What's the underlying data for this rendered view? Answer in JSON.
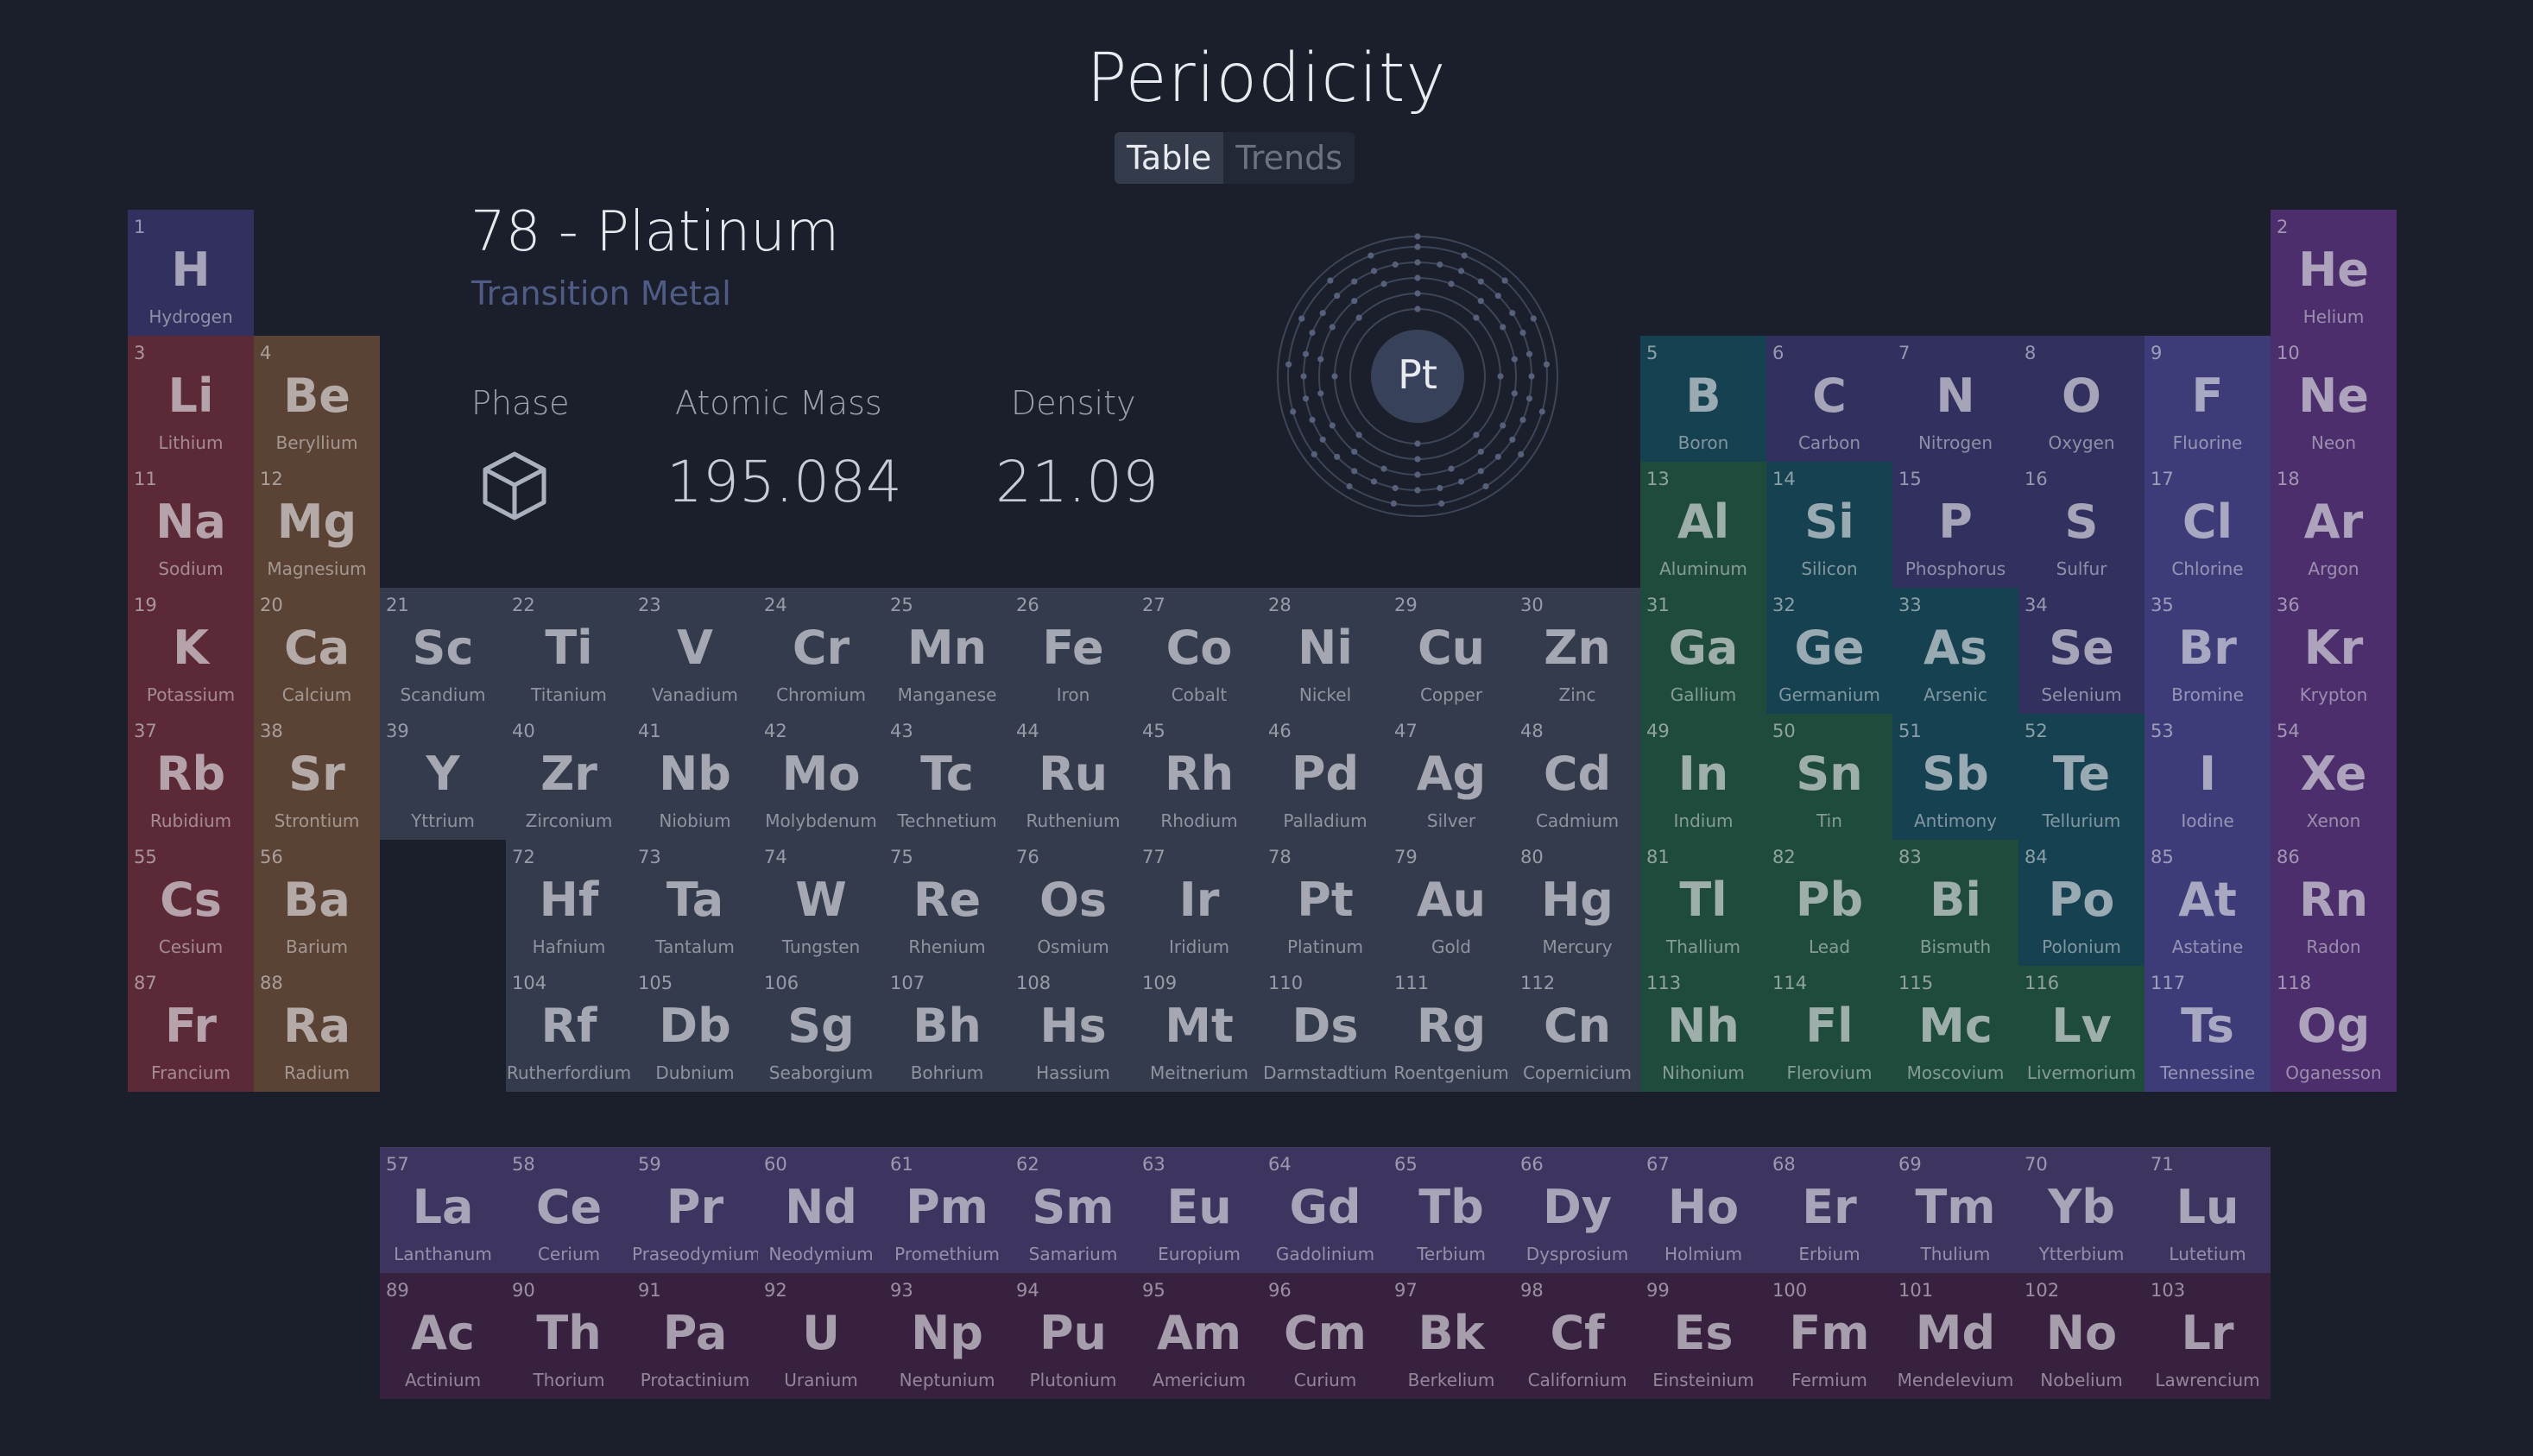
{
  "app": {
    "title": "Periodicity"
  },
  "view_tabs": [
    {
      "label": "Table",
      "active": true
    },
    {
      "label": "Trends",
      "active": false
    }
  ],
  "selected": {
    "title": "78 - Platinum",
    "category": "Transition Metal",
    "symbol": "Pt",
    "phase_label": "Phase",
    "phase_icon": "cube-icon",
    "mass_label": "Atomic Mass",
    "mass_value": "195.084",
    "density_label": "Density",
    "density_value": "21.09",
    "shells": [
      2,
      8,
      18,
      32,
      17,
      1
    ]
  },
  "category_colors": {
    "alkali": "#5c2a37",
    "alkaline": "#5a4234",
    "transition": "#333b4c",
    "post": "#1f4b3c",
    "metalloid": "#164150",
    "nonmetal": "#32305f",
    "halogen": "#3e3c78",
    "noble": "#4b2e6b",
    "lanthanide": "#3e3460",
    "actinide": "#38213f"
  },
  "elements": [
    {
      "n": "1",
      "s": "H",
      "name": "Hydrogen",
      "r": 1,
      "c": 1,
      "cat": "nonmetal"
    },
    {
      "n": "2",
      "s": "He",
      "name": "Helium",
      "r": 1,
      "c": 18,
      "cat": "noble"
    },
    {
      "n": "3",
      "s": "Li",
      "name": "Lithium",
      "r": 2,
      "c": 1,
      "cat": "alkali"
    },
    {
      "n": "4",
      "s": "Be",
      "name": "Beryllium",
      "r": 2,
      "c": 2,
      "cat": "alkaline"
    },
    {
      "n": "5",
      "s": "B",
      "name": "Boron",
      "r": 2,
      "c": 13,
      "cat": "metalloid"
    },
    {
      "n": "6",
      "s": "C",
      "name": "Carbon",
      "r": 2,
      "c": 14,
      "cat": "nonmetal"
    },
    {
      "n": "7",
      "s": "N",
      "name": "Nitrogen",
      "r": 2,
      "c": 15,
      "cat": "nonmetal"
    },
    {
      "n": "8",
      "s": "O",
      "name": "Oxygen",
      "r": 2,
      "c": 16,
      "cat": "nonmetal"
    },
    {
      "n": "9",
      "s": "F",
      "name": "Fluorine",
      "r": 2,
      "c": 17,
      "cat": "halogen"
    },
    {
      "n": "10",
      "s": "Ne",
      "name": "Neon",
      "r": 2,
      "c": 18,
      "cat": "noble"
    },
    {
      "n": "11",
      "s": "Na",
      "name": "Sodium",
      "r": 3,
      "c": 1,
      "cat": "alkali"
    },
    {
      "n": "12",
      "s": "Mg",
      "name": "Magnesium",
      "r": 3,
      "c": 2,
      "cat": "alkaline"
    },
    {
      "n": "13",
      "s": "Al",
      "name": "Aluminum",
      "r": 3,
      "c": 13,
      "cat": "post"
    },
    {
      "n": "14",
      "s": "Si",
      "name": "Silicon",
      "r": 3,
      "c": 14,
      "cat": "metalloid"
    },
    {
      "n": "15",
      "s": "P",
      "name": "Phosphorus",
      "r": 3,
      "c": 15,
      "cat": "nonmetal"
    },
    {
      "n": "16",
      "s": "S",
      "name": "Sulfur",
      "r": 3,
      "c": 16,
      "cat": "nonmetal"
    },
    {
      "n": "17",
      "s": "Cl",
      "name": "Chlorine",
      "r": 3,
      "c": 17,
      "cat": "halogen"
    },
    {
      "n": "18",
      "s": "Ar",
      "name": "Argon",
      "r": 3,
      "c": 18,
      "cat": "noble"
    },
    {
      "n": "19",
      "s": "K",
      "name": "Potassium",
      "r": 4,
      "c": 1,
      "cat": "alkali"
    },
    {
      "n": "20",
      "s": "Ca",
      "name": "Calcium",
      "r": 4,
      "c": 2,
      "cat": "alkaline"
    },
    {
      "n": "21",
      "s": "Sc",
      "name": "Scandium",
      "r": 4,
      "c": 3,
      "cat": "transition"
    },
    {
      "n": "22",
      "s": "Ti",
      "name": "Titanium",
      "r": 4,
      "c": 4,
      "cat": "transition"
    },
    {
      "n": "23",
      "s": "V",
      "name": "Vanadium",
      "r": 4,
      "c": 5,
      "cat": "transition"
    },
    {
      "n": "24",
      "s": "Cr",
      "name": "Chromium",
      "r": 4,
      "c": 6,
      "cat": "transition"
    },
    {
      "n": "25",
      "s": "Mn",
      "name": "Manganese",
      "r": 4,
      "c": 7,
      "cat": "transition"
    },
    {
      "n": "26",
      "s": "Fe",
      "name": "Iron",
      "r": 4,
      "c": 8,
      "cat": "transition"
    },
    {
      "n": "27",
      "s": "Co",
      "name": "Cobalt",
      "r": 4,
      "c": 9,
      "cat": "transition"
    },
    {
      "n": "28",
      "s": "Ni",
      "name": "Nickel",
      "r": 4,
      "c": 10,
      "cat": "transition"
    },
    {
      "n": "29",
      "s": "Cu",
      "name": "Copper",
      "r": 4,
      "c": 11,
      "cat": "transition"
    },
    {
      "n": "30",
      "s": "Zn",
      "name": "Zinc",
      "r": 4,
      "c": 12,
      "cat": "transition"
    },
    {
      "n": "31",
      "s": "Ga",
      "name": "Gallium",
      "r": 4,
      "c": 13,
      "cat": "post"
    },
    {
      "n": "32",
      "s": "Ge",
      "name": "Germanium",
      "r": 4,
      "c": 14,
      "cat": "metalloid"
    },
    {
      "n": "33",
      "s": "As",
      "name": "Arsenic",
      "r": 4,
      "c": 15,
      "cat": "metalloid"
    },
    {
      "n": "34",
      "s": "Se",
      "name": "Selenium",
      "r": 4,
      "c": 16,
      "cat": "nonmetal"
    },
    {
      "n": "35",
      "s": "Br",
      "name": "Bromine",
      "r": 4,
      "c": 17,
      "cat": "halogen"
    },
    {
      "n": "36",
      "s": "Kr",
      "name": "Krypton",
      "r": 4,
      "c": 18,
      "cat": "noble"
    },
    {
      "n": "37",
      "s": "Rb",
      "name": "Rubidium",
      "r": 5,
      "c": 1,
      "cat": "alkali"
    },
    {
      "n": "38",
      "s": "Sr",
      "name": "Strontium",
      "r": 5,
      "c": 2,
      "cat": "alkaline"
    },
    {
      "n": "39",
      "s": "Y",
      "name": "Yttrium",
      "r": 5,
      "c": 3,
      "cat": "transition"
    },
    {
      "n": "40",
      "s": "Zr",
      "name": "Zirconium",
      "r": 5,
      "c": 4,
      "cat": "transition"
    },
    {
      "n": "41",
      "s": "Nb",
      "name": "Niobium",
      "r": 5,
      "c": 5,
      "cat": "transition"
    },
    {
      "n": "42",
      "s": "Mo",
      "name": "Molybdenum",
      "r": 5,
      "c": 6,
      "cat": "transition"
    },
    {
      "n": "43",
      "s": "Tc",
      "name": "Technetium",
      "r": 5,
      "c": 7,
      "cat": "transition"
    },
    {
      "n": "44",
      "s": "Ru",
      "name": "Ruthenium",
      "r": 5,
      "c": 8,
      "cat": "transition"
    },
    {
      "n": "45",
      "s": "Rh",
      "name": "Rhodium",
      "r": 5,
      "c": 9,
      "cat": "transition"
    },
    {
      "n": "46",
      "s": "Pd",
      "name": "Palladium",
      "r": 5,
      "c": 10,
      "cat": "transition"
    },
    {
      "n": "47",
      "s": "Ag",
      "name": "Silver",
      "r": 5,
      "c": 11,
      "cat": "transition"
    },
    {
      "n": "48",
      "s": "Cd",
      "name": "Cadmium",
      "r": 5,
      "c": 12,
      "cat": "transition"
    },
    {
      "n": "49",
      "s": "In",
      "name": "Indium",
      "r": 5,
      "c": 13,
      "cat": "post"
    },
    {
      "n": "50",
      "s": "Sn",
      "name": "Tin",
      "r": 5,
      "c": 14,
      "cat": "post"
    },
    {
      "n": "51",
      "s": "Sb",
      "name": "Antimony",
      "r": 5,
      "c": 15,
      "cat": "metalloid"
    },
    {
      "n": "52",
      "s": "Te",
      "name": "Tellurium",
      "r": 5,
      "c": 16,
      "cat": "metalloid"
    },
    {
      "n": "53",
      "s": "I",
      "name": "Iodine",
      "r": 5,
      "c": 17,
      "cat": "halogen"
    },
    {
      "n": "54",
      "s": "Xe",
      "name": "Xenon",
      "r": 5,
      "c": 18,
      "cat": "noble"
    },
    {
      "n": "55",
      "s": "Cs",
      "name": "Cesium",
      "r": 6,
      "c": 1,
      "cat": "alkali"
    },
    {
      "n": "56",
      "s": "Ba",
      "name": "Barium",
      "r": 6,
      "c": 2,
      "cat": "alkaline"
    },
    {
      "n": "72",
      "s": "Hf",
      "name": "Hafnium",
      "r": 6,
      "c": 4,
      "cat": "transition"
    },
    {
      "n": "73",
      "s": "Ta",
      "name": "Tantalum",
      "r": 6,
      "c": 5,
      "cat": "transition"
    },
    {
      "n": "74",
      "s": "W",
      "name": "Tungsten",
      "r": 6,
      "c": 6,
      "cat": "transition"
    },
    {
      "n": "75",
      "s": "Re",
      "name": "Rhenium",
      "r": 6,
      "c": 7,
      "cat": "transition"
    },
    {
      "n": "76",
      "s": "Os",
      "name": "Osmium",
      "r": 6,
      "c": 8,
      "cat": "transition"
    },
    {
      "n": "77",
      "s": "Ir",
      "name": "Iridium",
      "r": 6,
      "c": 9,
      "cat": "transition"
    },
    {
      "n": "78",
      "s": "Pt",
      "name": "Platinum",
      "r": 6,
      "c": 10,
      "cat": "transition"
    },
    {
      "n": "79",
      "s": "Au",
      "name": "Gold",
      "r": 6,
      "c": 11,
      "cat": "transition"
    },
    {
      "n": "80",
      "s": "Hg",
      "name": "Mercury",
      "r": 6,
      "c": 12,
      "cat": "transition"
    },
    {
      "n": "81",
      "s": "Tl",
      "name": "Thallium",
      "r": 6,
      "c": 13,
      "cat": "post"
    },
    {
      "n": "82",
      "s": "Pb",
      "name": "Lead",
      "r": 6,
      "c": 14,
      "cat": "post"
    },
    {
      "n": "83",
      "s": "Bi",
      "name": "Bismuth",
      "r": 6,
      "c": 15,
      "cat": "post"
    },
    {
      "n": "84",
      "s": "Po",
      "name": "Polonium",
      "r": 6,
      "c": 16,
      "cat": "metalloid"
    },
    {
      "n": "85",
      "s": "At",
      "name": "Astatine",
      "r": 6,
      "c": 17,
      "cat": "halogen"
    },
    {
      "n": "86",
      "s": "Rn",
      "name": "Radon",
      "r": 6,
      "c": 18,
      "cat": "noble"
    },
    {
      "n": "87",
      "s": "Fr",
      "name": "Francium",
      "r": 7,
      "c": 1,
      "cat": "alkali"
    },
    {
      "n": "88",
      "s": "Ra",
      "name": "Radium",
      "r": 7,
      "c": 2,
      "cat": "alkaline"
    },
    {
      "n": "104",
      "s": "Rf",
      "name": "Rutherfordium",
      "r": 7,
      "c": 4,
      "cat": "transition"
    },
    {
      "n": "105",
      "s": "Db",
      "name": "Dubnium",
      "r": 7,
      "c": 5,
      "cat": "transition"
    },
    {
      "n": "106",
      "s": "Sg",
      "name": "Seaborgium",
      "r": 7,
      "c": 6,
      "cat": "transition"
    },
    {
      "n": "107",
      "s": "Bh",
      "name": "Bohrium",
      "r": 7,
      "c": 7,
      "cat": "transition"
    },
    {
      "n": "108",
      "s": "Hs",
      "name": "Hassium",
      "r": 7,
      "c": 8,
      "cat": "transition"
    },
    {
      "n": "109",
      "s": "Mt",
      "name": "Meitnerium",
      "r": 7,
      "c": 9,
      "cat": "transition"
    },
    {
      "n": "110",
      "s": "Ds",
      "name": "Darmstadtium",
      "r": 7,
      "c": 10,
      "cat": "transition"
    },
    {
      "n": "111",
      "s": "Rg",
      "name": "Roentgenium",
      "r": 7,
      "c": 11,
      "cat": "transition"
    },
    {
      "n": "112",
      "s": "Cn",
      "name": "Copernicium",
      "r": 7,
      "c": 12,
      "cat": "transition"
    },
    {
      "n": "113",
      "s": "Nh",
      "name": "Nihonium",
      "r": 7,
      "c": 13,
      "cat": "post"
    },
    {
      "n": "114",
      "s": "Fl",
      "name": "Flerovium",
      "r": 7,
      "c": 14,
      "cat": "post"
    },
    {
      "n": "115",
      "s": "Mc",
      "name": "Moscovium",
      "r": 7,
      "c": 15,
      "cat": "post"
    },
    {
      "n": "116",
      "s": "Lv",
      "name": "Livermorium",
      "r": 7,
      "c": 16,
      "cat": "post"
    },
    {
      "n": "117",
      "s": "Ts",
      "name": "Tennessine",
      "r": 7,
      "c": 17,
      "cat": "halogen"
    },
    {
      "n": "118",
      "s": "Og",
      "name": "Oganesson",
      "r": 7,
      "c": 18,
      "cat": "noble"
    },
    {
      "n": "57",
      "s": "La",
      "name": "Lanthanum",
      "r": 9,
      "c": 3,
      "cat": "lanthanide"
    },
    {
      "n": "58",
      "s": "Ce",
      "name": "Cerium",
      "r": 9,
      "c": 4,
      "cat": "lanthanide"
    },
    {
      "n": "59",
      "s": "Pr",
      "name": "Praseodymium",
      "r": 9,
      "c": 5,
      "cat": "lanthanide"
    },
    {
      "n": "60",
      "s": "Nd",
      "name": "Neodymium",
      "r": 9,
      "c": 6,
      "cat": "lanthanide"
    },
    {
      "n": "61",
      "s": "Pm",
      "name": "Promethium",
      "r": 9,
      "c": 7,
      "cat": "lanthanide"
    },
    {
      "n": "62",
      "s": "Sm",
      "name": "Samarium",
      "r": 9,
      "c": 8,
      "cat": "lanthanide"
    },
    {
      "n": "63",
      "s": "Eu",
      "name": "Europium",
      "r": 9,
      "c": 9,
      "cat": "lanthanide"
    },
    {
      "n": "64",
      "s": "Gd",
      "name": "Gadolinium",
      "r": 9,
      "c": 10,
      "cat": "lanthanide"
    },
    {
      "n": "65",
      "s": "Tb",
      "name": "Terbium",
      "r": 9,
      "c": 11,
      "cat": "lanthanide"
    },
    {
      "n": "66",
      "s": "Dy",
      "name": "Dysprosium",
      "r": 9,
      "c": 12,
      "cat": "lanthanide"
    },
    {
      "n": "67",
      "s": "Ho",
      "name": "Holmium",
      "r": 9,
      "c": 13,
      "cat": "lanthanide"
    },
    {
      "n": "68",
      "s": "Er",
      "name": "Erbium",
      "r": 9,
      "c": 14,
      "cat": "lanthanide"
    },
    {
      "n": "69",
      "s": "Tm",
      "name": "Thulium",
      "r": 9,
      "c": 15,
      "cat": "lanthanide"
    },
    {
      "n": "70",
      "s": "Yb",
      "name": "Ytterbium",
      "r": 9,
      "c": 16,
      "cat": "lanthanide"
    },
    {
      "n": "71",
      "s": "Lu",
      "name": "Lutetium",
      "r": 9,
      "c": 17,
      "cat": "lanthanide"
    },
    {
      "n": "89",
      "s": "Ac",
      "name": "Actinium",
      "r": 10,
      "c": 3,
      "cat": "actinide"
    },
    {
      "n": "90",
      "s": "Th",
      "name": "Thorium",
      "r": 10,
      "c": 4,
      "cat": "actinide"
    },
    {
      "n": "91",
      "s": "Pa",
      "name": "Protactinium",
      "r": 10,
      "c": 5,
      "cat": "actinide"
    },
    {
      "n": "92",
      "s": "U",
      "name": "Uranium",
      "r": 10,
      "c": 6,
      "cat": "actinide"
    },
    {
      "n": "93",
      "s": "Np",
      "name": "Neptunium",
      "r": 10,
      "c": 7,
      "cat": "actinide"
    },
    {
      "n": "94",
      "s": "Pu",
      "name": "Plutonium",
      "r": 10,
      "c": 8,
      "cat": "actinide"
    },
    {
      "n": "95",
      "s": "Am",
      "name": "Americium",
      "r": 10,
      "c": 9,
      "cat": "actinide"
    },
    {
      "n": "96",
      "s": "Cm",
      "name": "Curium",
      "r": 10,
      "c": 10,
      "cat": "actinide"
    },
    {
      "n": "97",
      "s": "Bk",
      "name": "Berkelium",
      "r": 10,
      "c": 11,
      "cat": "actinide"
    },
    {
      "n": "98",
      "s": "Cf",
      "name": "Californium",
      "r": 10,
      "c": 12,
      "cat": "actinide"
    },
    {
      "n": "99",
      "s": "Es",
      "name": "Einsteinium",
      "r": 10,
      "c": 13,
      "cat": "actinide"
    },
    {
      "n": "100",
      "s": "Fm",
      "name": "Fermium",
      "r": 10,
      "c": 14,
      "cat": "actinide"
    },
    {
      "n": "101",
      "s": "Md",
      "name": "Mendelevium",
      "r": 10,
      "c": 15,
      "cat": "actinide"
    },
    {
      "n": "102",
      "s": "No",
      "name": "Nobelium",
      "r": 10,
      "c": 16,
      "cat": "actinide"
    },
    {
      "n": "103",
      "s": "Lr",
      "name": "Lawrencium",
      "r": 10,
      "c": 17,
      "cat": "actinide"
    }
  ]
}
